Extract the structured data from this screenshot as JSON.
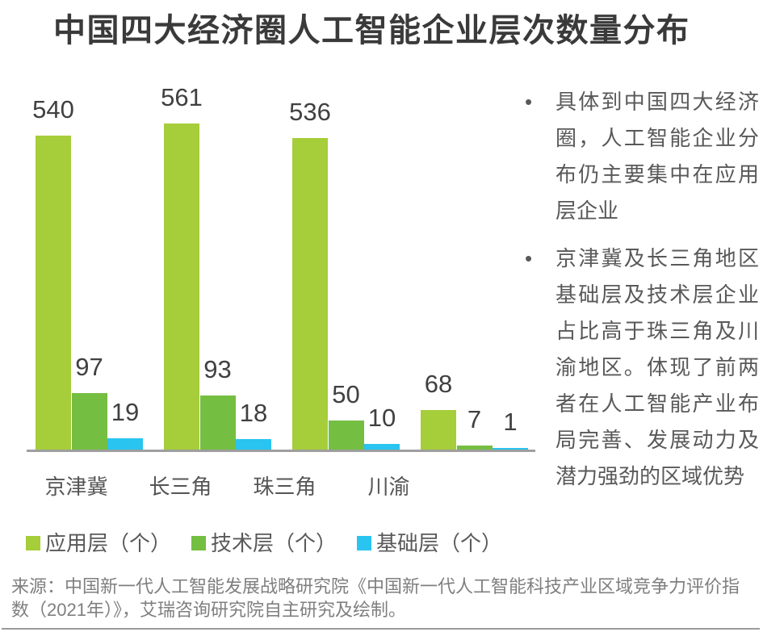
{
  "title": "中国四大经济圈人工智能企业层次数量分布",
  "chart_data": {
    "type": "bar",
    "title": "中国四大经济圈人工智能企业层次数量分布",
    "categories": [
      "京津冀",
      "长三角",
      "珠三角",
      "川渝"
    ],
    "series": [
      {
        "key": "application-layer",
        "name": "应用层（个）",
        "color": "#a6cd3a",
        "values": [
          540,
          561,
          536,
          68
        ]
      },
      {
        "key": "technology-layer",
        "name": "技术层（个）",
        "color": "#74be42",
        "values": [
          97,
          93,
          50,
          7
        ]
      },
      {
        "key": "basic-layer",
        "name": "基础层（个）",
        "color": "#29c4f0",
        "values": [
          19,
          18,
          10,
          1
        ]
      }
    ],
    "ylim": [
      0,
      575
    ],
    "grid": false,
    "value_labels": true,
    "legend_position": "bottom",
    "xlabel": "",
    "ylabel": ""
  },
  "notes": {
    "bullet_1": "具体到中国四大经济圈，人工智能企业分布仍主要集中在应用层企业",
    "bullet_2": "京津冀及长三角地区基础层及技术层企业占比高于珠三角及川渝地区。体现了前两者在人工智能产业布局完善、发展动力及潜力强劲的区域优势"
  },
  "source": "来源：中国新一代人工智能发展战略研究院《中国新一代人工智能科技产业区域竞争力评价指数（2021年）》，艾瑞咨询研究院自主研究及绘制。",
  "theme": {
    "title_color": "#3a3a3a",
    "value_label_color": "#404040",
    "axis_color": "#9e9e9e",
    "category_color": "#555555",
    "body_text_color": "#595959",
    "source_color": "#7f7f7f",
    "background": "#ffffff"
  }
}
